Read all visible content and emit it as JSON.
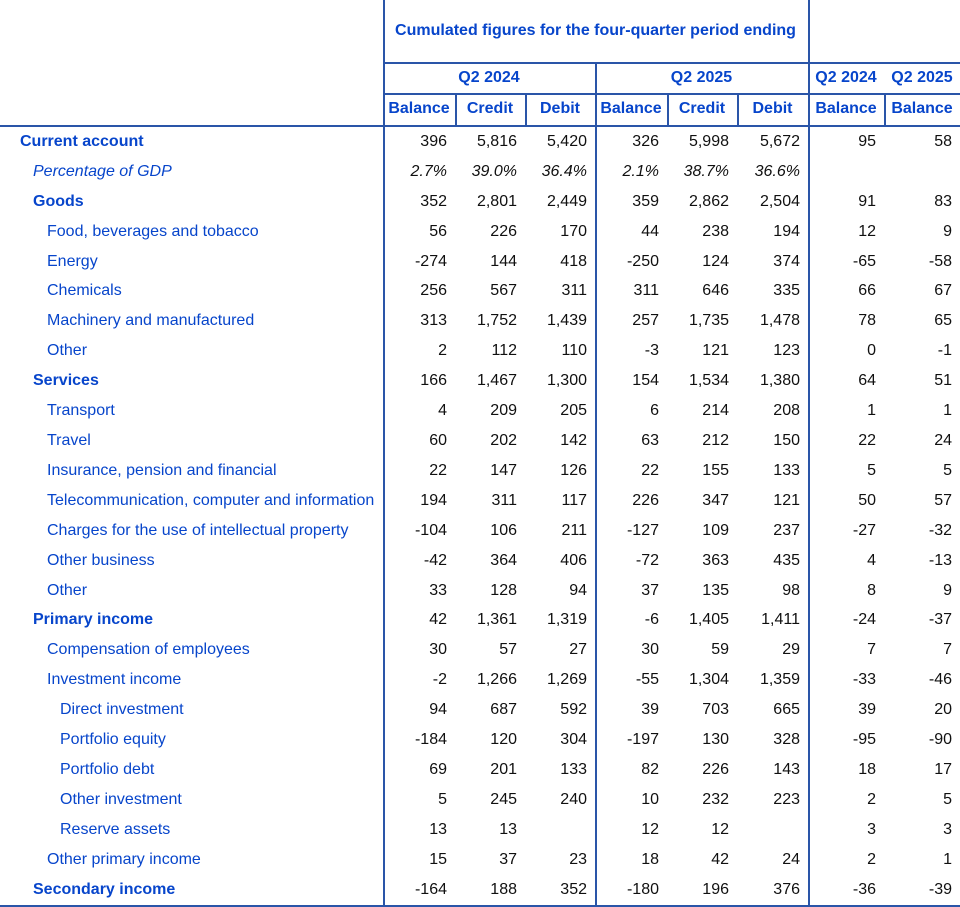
{
  "header": {
    "title": "Cumulated figures for the four-quarter period ending",
    "quarters_left": [
      "Q2 2024",
      "Q2 2025"
    ],
    "quarters_right": [
      "Q2 2024",
      "Q2 2025"
    ],
    "sub_left": [
      "Balance",
      "Credit",
      "Debit",
      "Balance",
      "Credit",
      "Debit"
    ],
    "sub_right": [
      "Balance",
      "Balance"
    ]
  },
  "colors": {
    "text_blue": "#0745cb",
    "border_blue": "#2a55a8",
    "number_black": "#101010",
    "background": "#ffffff"
  },
  "rows": [
    {
      "label": "Current account",
      "style": "bold",
      "indent": 0,
      "values": [
        "396",
        "5,816",
        "5,420",
        "326",
        "5,998",
        "5,672",
        "95",
        "58"
      ]
    },
    {
      "label": "Percentage of GDP",
      "style": "italic",
      "indent": 1,
      "values": [
        "2.7%",
        "39.0%",
        "36.4%",
        "2.1%",
        "38.7%",
        "36.6%",
        "",
        ""
      ]
    },
    {
      "label": "Goods",
      "style": "bold",
      "indent": 1,
      "values": [
        "352",
        "2,801",
        "2,449",
        "359",
        "2,862",
        "2,504",
        "91",
        "83"
      ]
    },
    {
      "label": "Food, beverages and tobacco",
      "style": "regular",
      "indent": 2,
      "values": [
        "56",
        "226",
        "170",
        "44",
        "238",
        "194",
        "12",
        "9"
      ]
    },
    {
      "label": "Energy",
      "style": "regular",
      "indent": 2,
      "values": [
        "-274",
        "144",
        "418",
        "-250",
        "124",
        "374",
        "-65",
        "-58"
      ]
    },
    {
      "label": "Chemicals",
      "style": "regular",
      "indent": 2,
      "values": [
        "256",
        "567",
        "311",
        "311",
        "646",
        "335",
        "66",
        "67"
      ]
    },
    {
      "label": "Machinery and manufactured",
      "style": "regular",
      "indent": 2,
      "values": [
        "313",
        "1,752",
        "1,439",
        "257",
        "1,735",
        "1,478",
        "78",
        "65"
      ]
    },
    {
      "label": "Other",
      "style": "regular",
      "indent": 2,
      "values": [
        "2",
        "112",
        "110",
        "-3",
        "121",
        "123",
        "0",
        "-1"
      ]
    },
    {
      "label": "Services",
      "style": "bold",
      "indent": 1,
      "values": [
        "166",
        "1,467",
        "1,300",
        "154",
        "1,534",
        "1,380",
        "64",
        "51"
      ]
    },
    {
      "label": "Transport",
      "style": "regular",
      "indent": 2,
      "values": [
        "4",
        "209",
        "205",
        "6",
        "214",
        "208",
        "1",
        "1"
      ]
    },
    {
      "label": "Travel",
      "style": "regular",
      "indent": 2,
      "values": [
        "60",
        "202",
        "142",
        "63",
        "212",
        "150",
        "22",
        "24"
      ]
    },
    {
      "label": "Insurance, pension and financial",
      "style": "regular",
      "indent": 2,
      "values": [
        "22",
        "147",
        "126",
        "22",
        "155",
        "133",
        "5",
        "5"
      ]
    },
    {
      "label": "Telecommunication, computer and information",
      "style": "regular",
      "indent": 2,
      "values": [
        "194",
        "311",
        "117",
        "226",
        "347",
        "121",
        "50",
        "57"
      ]
    },
    {
      "label": "Charges for the use of intellectual property",
      "style": "regular",
      "indent": 2,
      "values": [
        "-104",
        "106",
        "211",
        "-127",
        "109",
        "237",
        "-27",
        "-32"
      ]
    },
    {
      "label": "Other business",
      "style": "regular",
      "indent": 2,
      "values": [
        "-42",
        "364",
        "406",
        "-72",
        "363",
        "435",
        "4",
        "-13"
      ]
    },
    {
      "label": "Other",
      "style": "regular",
      "indent": 2,
      "values": [
        "33",
        "128",
        "94",
        "37",
        "135",
        "98",
        "8",
        "9"
      ]
    },
    {
      "label": "Primary income",
      "style": "bold",
      "indent": 1,
      "values": [
        "42",
        "1,361",
        "1,319",
        "-6",
        "1,405",
        "1,411",
        "-24",
        "-37"
      ]
    },
    {
      "label": "Compensation of employees",
      "style": "regular",
      "indent": 2,
      "values": [
        "30",
        "57",
        "27",
        "30",
        "59",
        "29",
        "7",
        "7"
      ]
    },
    {
      "label": "Investment income",
      "style": "regular",
      "indent": 2,
      "values": [
        "-2",
        "1,266",
        "1,269",
        "-55",
        "1,304",
        "1,359",
        "-33",
        "-46"
      ]
    },
    {
      "label": "Direct investment",
      "style": "regular",
      "indent": 3,
      "values": [
        "94",
        "687",
        "592",
        "39",
        "703",
        "665",
        "39",
        "20"
      ]
    },
    {
      "label": "Portfolio equity",
      "style": "regular",
      "indent": 3,
      "values": [
        "-184",
        "120",
        "304",
        "-197",
        "130",
        "328",
        "-95",
        "-90"
      ]
    },
    {
      "label": "Portfolio debt",
      "style": "regular",
      "indent": 3,
      "values": [
        "69",
        "201",
        "133",
        "82",
        "226",
        "143",
        "18",
        "17"
      ]
    },
    {
      "label": "Other investment",
      "style": "regular",
      "indent": 3,
      "values": [
        "5",
        "245",
        "240",
        "10",
        "232",
        "223",
        "2",
        "5"
      ]
    },
    {
      "label": "Reserve assets",
      "style": "regular",
      "indent": 3,
      "values": [
        "13",
        "13",
        "",
        "12",
        "12",
        "",
        "3",
        "3"
      ]
    },
    {
      "label": "Other primary income",
      "style": "regular",
      "indent": 2,
      "values": [
        "15",
        "37",
        "23",
        "18",
        "42",
        "24",
        "2",
        "1"
      ]
    },
    {
      "label": "Secondary income",
      "style": "bold",
      "indent": 1,
      "values": [
        "-164",
        "188",
        "352",
        "-180",
        "196",
        "376",
        "-36",
        "-39"
      ]
    }
  ]
}
